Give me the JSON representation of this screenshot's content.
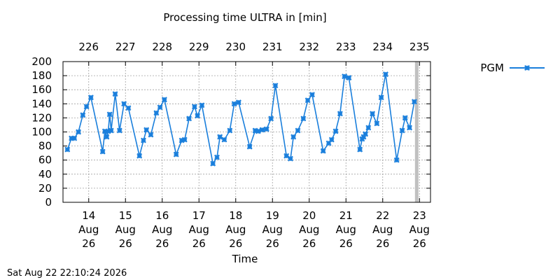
{
  "chart_data": {
    "type": "line",
    "title": "Processing time ULTRA in [min]",
    "xlabel": "Time",
    "ylabel": "",
    "ylim": [
      0,
      200
    ],
    "yticks": [
      0,
      20,
      40,
      60,
      80,
      100,
      120,
      140,
      160,
      180,
      200
    ],
    "xlim": [
      13.3,
      23.3
    ],
    "xticks": [
      {
        "x": 14,
        "day": "14",
        "month": "Aug",
        "year": "26"
      },
      {
        "x": 15,
        "day": "15",
        "month": "Aug",
        "year": "26"
      },
      {
        "x": 16,
        "day": "16",
        "month": "Aug",
        "year": "26"
      },
      {
        "x": 17,
        "day": "17",
        "month": "Aug",
        "year": "26"
      },
      {
        "x": 18,
        "day": "18",
        "month": "Aug",
        "year": "26"
      },
      {
        "x": 19,
        "day": "19",
        "month": "Aug",
        "year": "26"
      },
      {
        "x": 20,
        "day": "20",
        "month": "Aug",
        "year": "26"
      },
      {
        "x": 21,
        "day": "21",
        "month": "Aug",
        "year": "26"
      },
      {
        "x": 22,
        "day": "22",
        "month": "Aug",
        "year": "26"
      },
      {
        "x": 23,
        "day": "23",
        "month": "Aug",
        "year": "26"
      }
    ],
    "top_axis": [
      {
        "x": 14,
        "label": "226"
      },
      {
        "x": 15,
        "label": "227"
      },
      {
        "x": 16,
        "label": "228"
      },
      {
        "x": 17,
        "label": "229"
      },
      {
        "x": 18,
        "label": "230"
      },
      {
        "x": 19,
        "label": "231"
      },
      {
        "x": 20,
        "label": "232"
      },
      {
        "x": 21,
        "label": "233"
      },
      {
        "x": 22,
        "label": "234"
      },
      {
        "x": 23,
        "label": "235"
      }
    ],
    "grid": true,
    "legend": "top-right",
    "current_time_marker": 22.925,
    "series": [
      {
        "name": "PGM",
        "color": "#1a7fdc",
        "marker": "x",
        "points": [
          [
            13.42,
            75
          ],
          [
            13.53,
            91
          ],
          [
            13.61,
            91
          ],
          [
            13.72,
            100
          ],
          [
            13.84,
            124
          ],
          [
            13.94,
            136
          ],
          [
            14.06,
            149
          ],
          [
            14.38,
            72
          ],
          [
            14.44,
            101
          ],
          [
            14.49,
            93
          ],
          [
            14.53,
            101
          ],
          [
            14.57,
            125
          ],
          [
            14.61,
            102
          ],
          [
            14.72,
            154
          ],
          [
            14.84,
            102
          ],
          [
            14.96,
            140
          ],
          [
            15.08,
            134
          ],
          [
            15.38,
            66
          ],
          [
            15.49,
            88
          ],
          [
            15.57,
            103
          ],
          [
            15.69,
            96
          ],
          [
            15.84,
            127
          ],
          [
            15.94,
            135
          ],
          [
            16.06,
            146
          ],
          [
            16.38,
            68
          ],
          [
            16.53,
            88
          ],
          [
            16.61,
            89
          ],
          [
            16.73,
            119
          ],
          [
            16.88,
            136
          ],
          [
            16.96,
            123
          ],
          [
            17.08,
            138
          ],
          [
            17.38,
            55
          ],
          [
            17.49,
            64
          ],
          [
            17.57,
            93
          ],
          [
            17.69,
            89
          ],
          [
            17.84,
            102
          ],
          [
            17.96,
            140
          ],
          [
            18.08,
            142
          ],
          [
            18.38,
            79
          ],
          [
            18.53,
            102
          ],
          [
            18.61,
            101
          ],
          [
            18.72,
            103
          ],
          [
            18.84,
            104
          ],
          [
            18.96,
            119
          ],
          [
            19.08,
            166
          ],
          [
            19.38,
            66
          ],
          [
            19.49,
            62
          ],
          [
            19.57,
            93
          ],
          [
            19.69,
            102
          ],
          [
            19.84,
            119
          ],
          [
            19.96,
            145
          ],
          [
            20.08,
            153
          ],
          [
            20.38,
            73
          ],
          [
            20.53,
            84
          ],
          [
            20.61,
            89
          ],
          [
            20.72,
            101
          ],
          [
            20.84,
            126
          ],
          [
            20.96,
            179
          ],
          [
            21.08,
            177
          ],
          [
            21.38,
            75
          ],
          [
            21.44,
            90
          ],
          [
            21.48,
            93
          ],
          [
            21.53,
            97
          ],
          [
            21.61,
            106
          ],
          [
            21.72,
            126
          ],
          [
            21.84,
            112
          ],
          [
            21.96,
            149
          ],
          [
            22.08,
            182
          ],
          [
            22.38,
            60
          ],
          [
            22.53,
            102
          ],
          [
            22.61,
            120
          ],
          [
            22.73,
            106
          ],
          [
            22.86,
            143
          ]
        ]
      }
    ]
  },
  "footer": {
    "timestamp": "Sat Aug 22 22:10:24 2026"
  }
}
